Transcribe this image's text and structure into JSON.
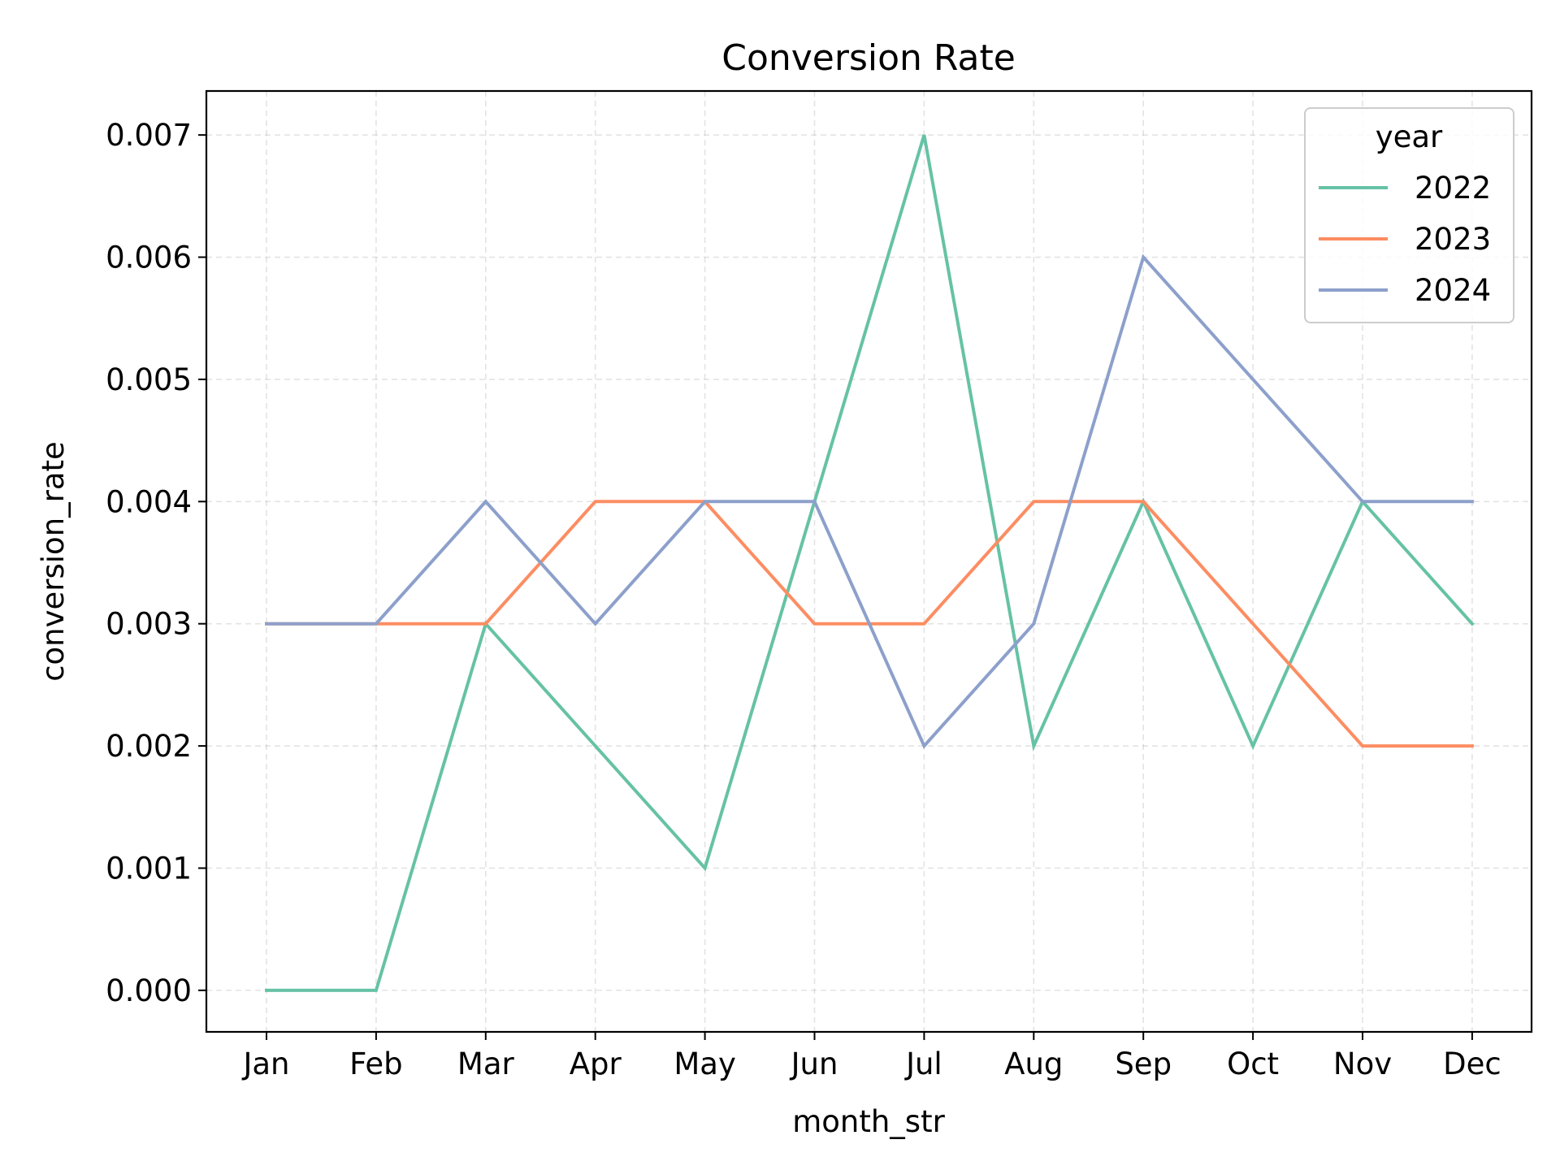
{
  "chart_data": {
    "type": "line",
    "title": "Conversion Rate",
    "xlabel": "month_str",
    "ylabel": "conversion_rate",
    "categories": [
      "Jan",
      "Feb",
      "Mar",
      "Apr",
      "May",
      "Jun",
      "Jul",
      "Aug",
      "Sep",
      "Oct",
      "Nov",
      "Dec"
    ],
    "ylim": [
      -0.00034,
      0.00736
    ],
    "yticks": [
      0.0,
      0.001,
      0.002,
      0.003,
      0.004,
      0.005,
      0.006,
      0.007
    ],
    "ytick_labels": [
      "0.000",
      "0.001",
      "0.002",
      "0.003",
      "0.004",
      "0.005",
      "0.006",
      "0.007"
    ],
    "grid": true,
    "legend": {
      "title": "year",
      "placement": "top-right"
    },
    "series": [
      {
        "name": "2022",
        "color": "#66c2a5",
        "values": [
          0.0,
          0.0,
          0.003,
          0.002,
          0.001,
          0.004,
          0.007,
          0.002,
          0.004,
          0.002,
          0.004,
          0.003
        ]
      },
      {
        "name": "2023",
        "color": "#fc8d62",
        "values": [
          0.003,
          0.003,
          0.003,
          0.004,
          0.004,
          0.003,
          0.003,
          0.004,
          0.004,
          0.003,
          0.002,
          0.002
        ]
      },
      {
        "name": "2024",
        "color": "#8da0cb",
        "values": [
          0.003,
          0.003,
          0.004,
          0.003,
          0.004,
          0.004,
          0.002,
          0.003,
          0.006,
          0.005,
          0.004,
          0.004
        ]
      }
    ]
  }
}
